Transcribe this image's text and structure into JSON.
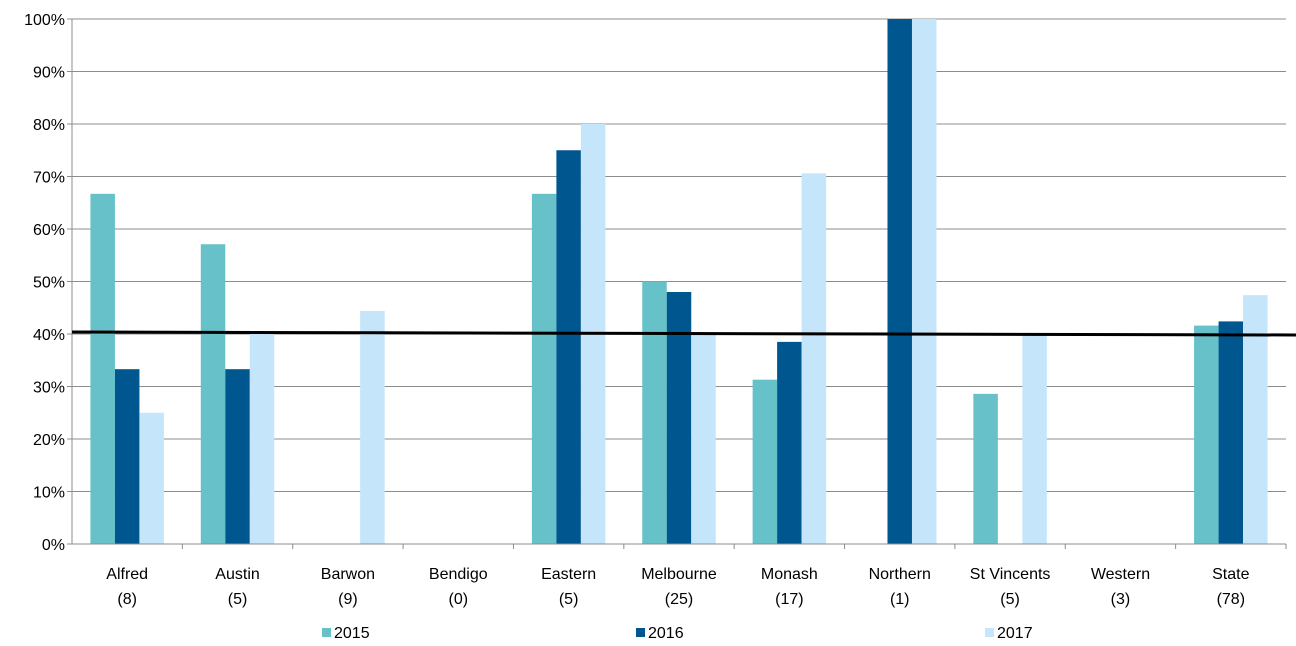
{
  "chart_data": {
    "type": "bar",
    "title": "",
    "xlabel": "",
    "ylabel": "",
    "ylim": [
      0,
      100
    ],
    "y_ticks": [
      "0%",
      "10%",
      "20%",
      "30%",
      "40%",
      "50%",
      "60%",
      "70%",
      "80%",
      "90%",
      "100%"
    ],
    "grid": true,
    "legend_position": "bottom",
    "categories": [
      {
        "name": "Alfred",
        "n": "(8)"
      },
      {
        "name": "Austin",
        "n": "(5)"
      },
      {
        "name": "Barwon",
        "n": "(9)"
      },
      {
        "name": "Bendigo",
        "n": "(0)"
      },
      {
        "name": "Eastern",
        "n": "(5)"
      },
      {
        "name": "Melbourne",
        "n": "(25)"
      },
      {
        "name": "Monash",
        "n": "(17)"
      },
      {
        "name": "Northern",
        "n": "(1)"
      },
      {
        "name": "St Vincents",
        "n": "(5)"
      },
      {
        "name": "Western",
        "n": "(3)"
      },
      {
        "name": "State",
        "n": "(78)"
      }
    ],
    "series": [
      {
        "name": "2015",
        "color": "#66C2C8",
        "values": [
          66.7,
          57.1,
          0,
          0,
          66.7,
          50,
          31.3,
          0,
          28.6,
          0,
          41.6
        ]
      },
      {
        "name": "2016",
        "color": "#00578F",
        "values": [
          33.3,
          33.3,
          0,
          0,
          75,
          48,
          38.5,
          100,
          0,
          0,
          42.4
        ]
      },
      {
        "name": "2017",
        "color": "#C5E6FA",
        "values": [
          25,
          40,
          44.4,
          0,
          80,
          40,
          70.6,
          100,
          40,
          0,
          47.4
        ]
      }
    ],
    "reference_line": {
      "value": 40,
      "color": "#000000"
    }
  }
}
